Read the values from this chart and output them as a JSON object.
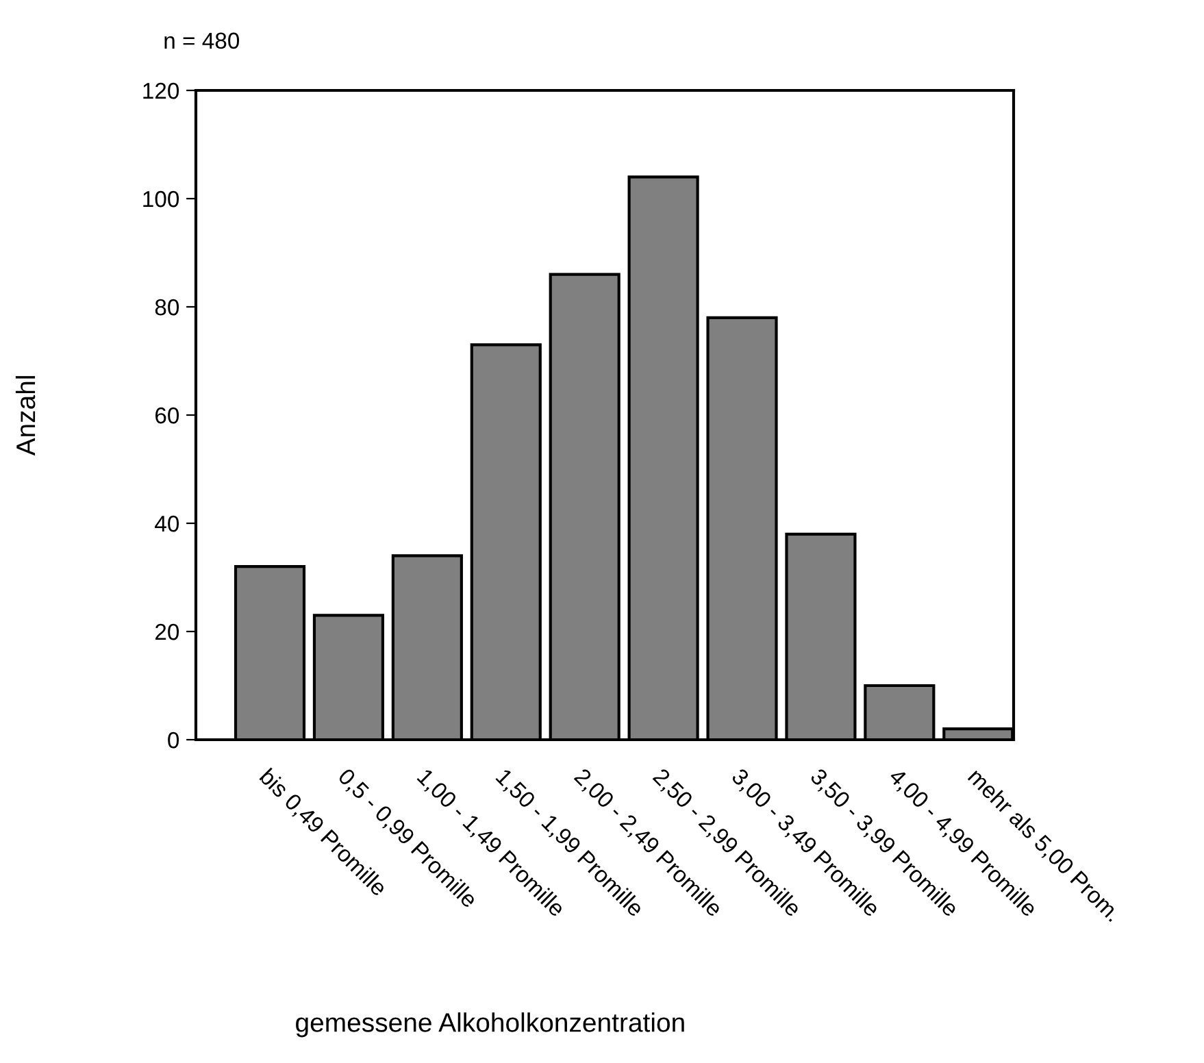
{
  "chart_data": {
    "type": "bar",
    "title": "n = 480",
    "xlabel": "gemessene Alkoholkonzentration",
    "ylabel": "Anzahl",
    "categories": [
      "bis 0,49 Promille",
      "0,5 - 0,99 Promille",
      "1,00 - 1,49 Promille",
      "1,50 - 1,99 Promille",
      "2,00 - 2,49 Promille",
      "2,50 - 2,99 Promille",
      "3,00 - 3,49 Promille",
      "3,50 - 3,99 Promille",
      "4,00 - 4,99 Promille",
      "mehr als 5,00 Prom."
    ],
    "values": [
      32,
      23,
      34,
      73,
      86,
      104,
      78,
      38,
      10,
      2
    ],
    "color": "#808080",
    "ylim": [
      0,
      120
    ],
    "yticks": [
      0,
      20,
      40,
      60,
      80,
      100,
      120
    ],
    "grid": false,
    "legend": false
  }
}
